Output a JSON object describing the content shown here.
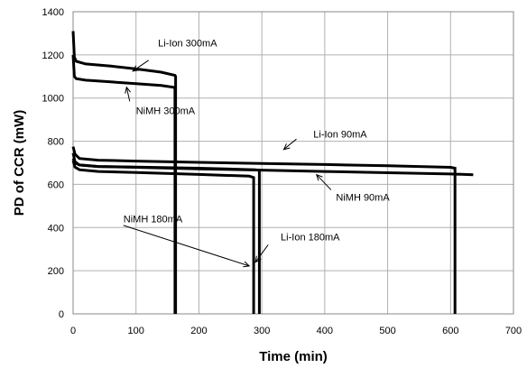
{
  "chart_data": {
    "type": "line",
    "xlabel": "Time (min)",
    "ylabel": "PD of CCR (mW)",
    "xlim": [
      0,
      700
    ],
    "ylim": [
      0,
      1400
    ],
    "x_ticks": [
      0,
      100,
      200,
      300,
      400,
      500,
      600,
      700
    ],
    "y_ticks": [
      0,
      200,
      400,
      600,
      800,
      1000,
      1200,
      1400
    ],
    "grid": true,
    "legend": "none",
    "series": [
      {
        "name": "Li-Ion 300mA",
        "x": [
          0,
          2,
          5,
          20,
          60,
          100,
          140,
          162,
          163,
          163
        ],
        "y": [
          1310,
          1190,
          1170,
          1158,
          1148,
          1135,
          1120,
          1105,
          1100,
          0
        ]
      },
      {
        "name": "NiMH 300mA",
        "x": [
          0,
          2,
          5,
          20,
          60,
          100,
          140,
          160,
          162,
          162
        ],
        "y": [
          1200,
          1100,
          1090,
          1083,
          1075,
          1067,
          1058,
          1050,
          1045,
          0
        ]
      },
      {
        "name": "Li-Ion 90mA",
        "x": [
          0,
          3,
          10,
          40,
          100,
          200,
          300,
          400,
          500,
          600,
          607,
          607
        ],
        "y": [
          775,
          740,
          720,
          712,
          708,
          702,
          697,
          692,
          686,
          679,
          675,
          0
        ]
      },
      {
        "name": "NiMH 90mA",
        "x": [
          0,
          3,
          10,
          40,
          100,
          200,
          300,
          400,
          500,
          600,
          636
        ],
        "y": [
          745,
          705,
          690,
          683,
          679,
          672,
          666,
          660,
          654,
          648,
          645
        ]
      },
      {
        "name": "NiMH 180mA",
        "x": [
          0,
          3,
          10,
          40,
          100,
          200,
          280,
          287,
          287
        ],
        "y": [
          710,
          680,
          668,
          660,
          655,
          646,
          638,
          632,
          0
        ]
      },
      {
        "name": "Li-Ion 180mA",
        "x": [
          0,
          3,
          10,
          40,
          100,
          200,
          290,
          296,
          296
        ],
        "y": [
          720,
          700,
          690,
          683,
          680,
          675,
          668,
          665,
          0
        ]
      }
    ],
    "annotations": [
      {
        "text": "Li-Ion 300mA",
        "x": 135,
        "y": 1240,
        "arrow_from": [
          120,
          1175
        ],
        "arrow_to": [
          95,
          1125
        ]
      },
      {
        "text": "NiMH 300mA",
        "x": 100,
        "y": 925,
        "arrow_from": [
          90,
          985
        ],
        "arrow_to": [
          85,
          1050
        ]
      },
      {
        "text": "Li-Ion 90mA",
        "x": 382,
        "y": 818,
        "arrow_from": [
          355,
          810
        ],
        "arrow_to": [
          335,
          762
        ]
      },
      {
        "text": "NiMH 90mA",
        "x": 418,
        "y": 525,
        "arrow_from": [
          410,
          575
        ],
        "arrow_to": [
          387,
          645
        ]
      },
      {
        "text": "NiMH 180mA",
        "x": 80,
        "y": 425,
        "arrow_from": [
          80,
          410
        ],
        "arrow_to": [
          280,
          222
        ]
      },
      {
        "text": "Li-Ion 180mA",
        "x": 330,
        "y": 340,
        "arrow_from": [
          310,
          320
        ],
        "arrow_to": [
          290,
          240
        ]
      }
    ]
  }
}
